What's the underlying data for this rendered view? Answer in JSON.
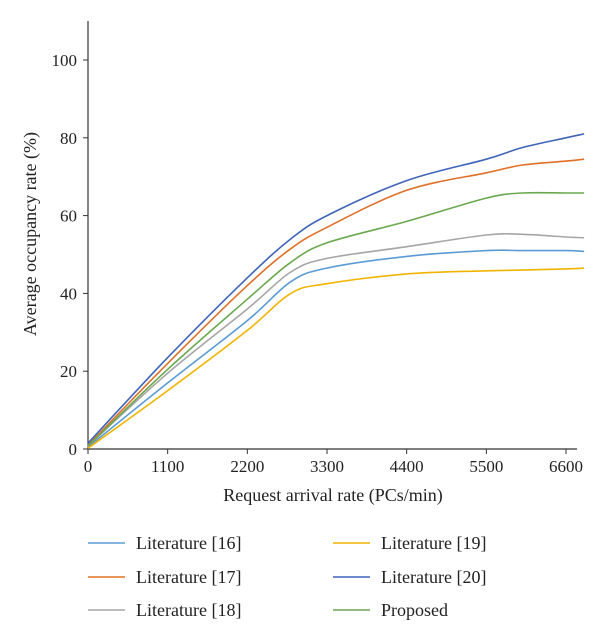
{
  "chart_data": {
    "type": "line",
    "title": "",
    "xlabel": "Request arrival rate (PCs/min)",
    "ylabel": "Average occupancy rate (%)",
    "xlim": [
      0,
      7000
    ],
    "ylim": [
      0,
      110
    ],
    "xticks": [
      0,
      1100,
      2200,
      3300,
      4400,
      5500,
      6600
    ],
    "yticks": [
      0,
      20,
      40,
      60,
      80,
      100
    ],
    "grid": false,
    "legend_position": "bottom",
    "x": [
      0,
      1100,
      2200,
      2800,
      3300,
      4400,
      5500,
      6000,
      6600,
      6850
    ],
    "series": [
      {
        "name": "Literature [16]",
        "color": "#5b9bd5",
        "values": [
          0.5,
          17,
          33,
          43,
          46.5,
          49.5,
          51,
          51,
          51,
          50.8
        ]
      },
      {
        "name": "Literature [17]",
        "color": "#e07028",
        "values": [
          1.0,
          22,
          42,
          51.5,
          57,
          66.5,
          71,
          73,
          74,
          74.5
        ]
      },
      {
        "name": "Literature [18]",
        "color": "#a6a6a6",
        "values": [
          0.8,
          19.5,
          36,
          45.5,
          49,
          52,
          55,
          55.2,
          54.5,
          54.3
        ]
      },
      {
        "name": "Literature [19]",
        "color": "#f0b400",
        "values": [
          0.2,
          15,
          30.5,
          40,
          42.5,
          45,
          45.8,
          46,
          46.3,
          46.5
        ]
      },
      {
        "name": "Literature [20]",
        "color": "#3f64b8",
        "values": [
          1.5,
          23.5,
          44,
          54,
          60,
          69,
          74.5,
          77.5,
          80,
          81
        ]
      },
      {
        "name": "Proposed",
        "color": "#6aa84f",
        "values": [
          0.8,
          20.5,
          38.5,
          48,
          53,
          58.5,
          64.5,
          65.8,
          65.8,
          65.8
        ]
      }
    ]
  }
}
